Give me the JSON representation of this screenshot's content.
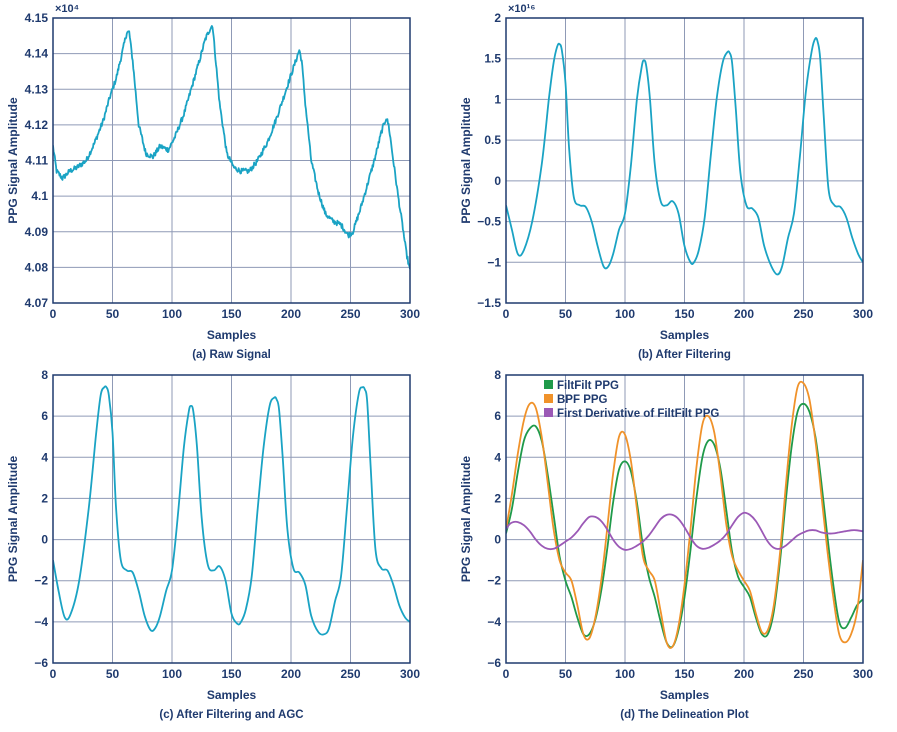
{
  "chart_data": [
    {
      "type": "line",
      "caption": "(a) Raw Signal",
      "xlabel": "Samples",
      "ylabel": "PPG Signal Amplitude",
      "xlim": [
        0,
        300
      ],
      "ylim": [
        4.07,
        4.15
      ],
      "scale_label": "×10⁴",
      "grid": true,
      "xticks": [
        0,
        50,
        100,
        150,
        200,
        250,
        300
      ],
      "yticks": [
        "4.07",
        "4.08",
        "4.09",
        "4.1",
        "4.11",
        "4.12",
        "4.13",
        "4.14",
        "4.15"
      ],
      "series": [
        {
          "color": "#1aa3c4",
          "noise": 0.0015,
          "x": [
            0,
            3,
            8,
            14,
            20,
            28,
            35,
            42,
            48,
            53,
            58,
            62,
            64,
            67,
            72,
            78,
            84,
            90,
            97,
            103,
            110,
            117,
            123,
            128,
            132,
            134,
            136,
            140,
            146,
            152,
            158,
            165,
            172,
            180,
            188,
            195,
            200,
            204,
            207,
            209,
            212,
            217,
            223,
            229,
            235,
            242,
            248,
            252,
            258,
            264,
            270,
            276,
            280,
            282,
            286,
            290,
            294,
            297,
            300
          ],
          "y": [
            4.114,
            4.107,
            4.105,
            4.107,
            4.108,
            4.11,
            4.115,
            4.121,
            4.128,
            4.133,
            4.14,
            4.146,
            4.146,
            4.138,
            4.12,
            4.112,
            4.111,
            4.114,
            4.113,
            4.117,
            4.123,
            4.131,
            4.138,
            4.144,
            4.147,
            4.148,
            4.141,
            4.126,
            4.112,
            4.108,
            4.107,
            4.107,
            4.11,
            4.115,
            4.122,
            4.129,
            4.134,
            4.138,
            4.141,
            4.138,
            4.126,
            4.11,
            4.101,
            4.095,
            4.093,
            4.092,
            4.089,
            4.09,
            4.096,
            4.103,
            4.11,
            4.118,
            4.122,
            4.12,
            4.11,
            4.1,
            4.091,
            4.084,
            4.079
          ]
        }
      ]
    },
    {
      "type": "line",
      "caption": "(b) After Filtering",
      "xlabel": "Samples",
      "ylabel": "PPG Signal Amplitude",
      "xlim": [
        0,
        300
      ],
      "ylim": [
        -1.5,
        2
      ],
      "scale_label": "×10¹⁶",
      "grid": true,
      "xticks": [
        0,
        50,
        100,
        150,
        200,
        250,
        300
      ],
      "yticks": [
        "−1.5",
        "−1",
        "−0.5",
        "0",
        "0.5",
        "1",
        "1.5",
        "2"
      ],
      "series": [
        {
          "color": "#1aa3c4",
          "x": [
            0,
            5,
            10,
            15,
            22,
            30,
            36,
            40,
            43,
            45,
            47,
            50,
            53,
            57,
            62,
            67,
            72,
            77,
            82,
            86,
            90,
            95,
            100,
            105,
            110,
            114,
            116,
            118,
            121,
            125,
            130,
            135,
            140,
            145,
            150,
            155,
            158,
            162,
            167,
            172,
            177,
            182,
            186,
            188,
            190,
            193,
            197,
            202,
            207,
            212,
            217,
            223,
            228,
            232,
            237,
            242,
            247,
            252,
            257,
            260,
            262,
            264,
            267,
            271,
            276,
            281,
            286,
            291,
            296,
            300
          ],
          "y": [
            -0.3,
            -0.6,
            -0.9,
            -0.85,
            -0.5,
            0.2,
            1.0,
            1.45,
            1.65,
            1.68,
            1.6,
            1.2,
            0.4,
            -0.2,
            -0.3,
            -0.32,
            -0.5,
            -0.8,
            -1.05,
            -1.05,
            -0.9,
            -0.6,
            -0.4,
            0.2,
            1.0,
            1.4,
            1.48,
            1.4,
            1.0,
            0.2,
            -0.25,
            -0.3,
            -0.25,
            -0.4,
            -0.8,
            -1.0,
            -1.0,
            -0.85,
            -0.45,
            0.3,
            1.0,
            1.45,
            1.58,
            1.57,
            1.45,
            0.9,
            0.1,
            -0.3,
            -0.34,
            -0.45,
            -0.8,
            -1.05,
            -1.15,
            -1.05,
            -0.7,
            -0.4,
            0.3,
            1.1,
            1.6,
            1.75,
            1.7,
            1.5,
            0.8,
            -0.1,
            -0.3,
            -0.32,
            -0.45,
            -0.7,
            -0.9,
            -1.0
          ]
        }
      ]
    },
    {
      "type": "line",
      "caption": "(c) After Filtering and AGC",
      "xlabel": "Samples",
      "ylabel": "PPG Signal Amplitude",
      "xlim": [
        0,
        300
      ],
      "ylim": [
        -6,
        8
      ],
      "grid": true,
      "xticks": [
        0,
        50,
        100,
        150,
        200,
        250,
        300
      ],
      "yticks": [
        "−6",
        "−4",
        "−2",
        "0",
        "2",
        "4",
        "6",
        "8"
      ],
      "series": [
        {
          "color": "#1aa3c4",
          "x": [
            0,
            5,
            10,
            15,
            22,
            30,
            36,
            40,
            43,
            45,
            47,
            50,
            53,
            57,
            62,
            67,
            72,
            77,
            82,
            86,
            90,
            95,
            100,
            105,
            110,
            114,
            116,
            118,
            121,
            125,
            130,
            135,
            140,
            145,
            150,
            155,
            158,
            162,
            167,
            172,
            177,
            182,
            186,
            188,
            190,
            193,
            197,
            202,
            207,
            212,
            217,
            223,
            228,
            232,
            237,
            242,
            247,
            252,
            257,
            260,
            262,
            264,
            267,
            271,
            276,
            281,
            286,
            291,
            296,
            300
          ],
          "y": [
            -1.0,
            -2.6,
            -3.8,
            -3.6,
            -2.0,
            1.5,
            5.0,
            7.0,
            7.4,
            7.4,
            7.0,
            5.2,
            1.5,
            -1.0,
            -1.5,
            -1.6,
            -2.5,
            -3.7,
            -4.4,
            -4.3,
            -3.7,
            -2.5,
            -1.5,
            1.2,
            4.5,
            6.2,
            6.5,
            6.2,
            4.5,
            1.0,
            -1.2,
            -1.5,
            -1.3,
            -2.0,
            -3.6,
            -4.1,
            -4.0,
            -3.4,
            -1.8,
            1.5,
            4.5,
            6.5,
            6.9,
            6.8,
            6.3,
            4.0,
            0.5,
            -1.4,
            -1.6,
            -2.2,
            -3.7,
            -4.5,
            -4.6,
            -4.3,
            -3.0,
            -1.8,
            1.5,
            5.0,
            7.1,
            7.4,
            7.3,
            6.7,
            3.5,
            -0.5,
            -1.4,
            -1.5,
            -2.2,
            -3.2,
            -3.8,
            -4.0
          ]
        }
      ]
    },
    {
      "type": "line",
      "caption": "(d) The Delineation Plot",
      "xlabel": "Samples",
      "ylabel": "PPG Signal Amplitude",
      "xlim": [
        0,
        300
      ],
      "ylim": [
        -6,
        8
      ],
      "grid": true,
      "legend": "top-left",
      "xticks": [
        0,
        50,
        100,
        150,
        200,
        250,
        300
      ],
      "yticks": [
        "−6",
        "−4",
        "−2",
        "0",
        "2",
        "4",
        "6",
        "8"
      ],
      "series": [
        {
          "name": "FiltFilt PPG",
          "color": "#1f9a4a",
          "x": [
            0,
            5,
            10,
            15,
            20,
            25,
            30,
            35,
            40,
            45,
            50,
            55,
            60,
            65,
            70,
            75,
            80,
            85,
            90,
            95,
            100,
            105,
            110,
            115,
            120,
            125,
            130,
            135,
            140,
            145,
            150,
            155,
            160,
            165,
            170,
            175,
            180,
            185,
            190,
            195,
            200,
            205,
            210,
            215,
            220,
            225,
            230,
            235,
            240,
            245,
            250,
            255,
            260,
            265,
            270,
            275,
            280,
            285,
            290,
            295,
            300
          ],
          "y": [
            0.3,
            1.5,
            3.3,
            4.8,
            5.4,
            5.5,
            4.8,
            3.2,
            1.2,
            -0.8,
            -2.0,
            -2.8,
            -3.8,
            -4.6,
            -4.6,
            -3.9,
            -2.5,
            -0.5,
            1.8,
            3.4,
            3.8,
            3.3,
            1.8,
            -0.3,
            -1.8,
            -2.8,
            -4.0,
            -5.0,
            -5.2,
            -4.4,
            -2.8,
            -0.5,
            2.0,
            4.0,
            4.8,
            4.6,
            3.5,
            1.5,
            -0.6,
            -1.8,
            -2.3,
            -2.8,
            -3.8,
            -4.6,
            -4.6,
            -3.5,
            -1.2,
            1.8,
            4.5,
            6.2,
            6.6,
            6.2,
            5.0,
            2.8,
            0.2,
            -2.2,
            -4.0,
            -4.3,
            -3.8,
            -3.2,
            -2.9
          ]
        },
        {
          "name": "BPF PPG",
          "color": "#f0922a",
          "x": [
            0,
            5,
            10,
            15,
            20,
            25,
            30,
            35,
            40,
            45,
            50,
            55,
            60,
            65,
            70,
            75,
            80,
            85,
            90,
            95,
            100,
            105,
            110,
            115,
            120,
            125,
            130,
            135,
            140,
            145,
            150,
            155,
            160,
            165,
            170,
            175,
            180,
            185,
            190,
            195,
            200,
            205,
            210,
            215,
            220,
            225,
            230,
            235,
            240,
            245,
            250,
            255,
            260,
            265,
            270,
            275,
            280,
            285,
            290,
            295,
            300
          ],
          "y": [
            0.5,
            2.2,
            4.2,
            5.8,
            6.6,
            6.4,
            5.0,
            2.8,
            0.5,
            -1.0,
            -1.6,
            -2.0,
            -3.2,
            -4.6,
            -4.8,
            -3.8,
            -2.0,
            0.5,
            3.2,
            5.0,
            5.1,
            3.8,
            1.5,
            -0.8,
            -1.5,
            -2.0,
            -3.5,
            -5.0,
            -5.2,
            -4.2,
            -2.2,
            0.5,
            3.5,
            5.6,
            6.0,
            5.2,
            3.2,
            0.8,
            -0.8,
            -1.5,
            -2.0,
            -2.5,
            -3.6,
            -4.5,
            -4.4,
            -3.2,
            -0.8,
            2.5,
            5.5,
            7.4,
            7.6,
            6.8,
            4.8,
            2.2,
            -0.5,
            -2.8,
            -4.6,
            -5.0,
            -4.6,
            -3.5,
            -1.0
          ]
        },
        {
          "name": "First Derivative of FiltFilt PPG",
          "color": "#9b59b6",
          "x": [
            0,
            3,
            6,
            10,
            15,
            20,
            25,
            30,
            35,
            40,
            45,
            50,
            55,
            60,
            65,
            70,
            75,
            80,
            85,
            90,
            95,
            100,
            105,
            110,
            115,
            120,
            125,
            130,
            135,
            140,
            145,
            150,
            155,
            160,
            165,
            170,
            175,
            180,
            185,
            190,
            195,
            200,
            205,
            210,
            215,
            220,
            225,
            230,
            235,
            240,
            245,
            250,
            255,
            260,
            265,
            270,
            275,
            280,
            285,
            290,
            295,
            300
          ],
          "y": [
            0.5,
            0.75,
            0.85,
            0.85,
            0.7,
            0.4,
            0.0,
            -0.3,
            -0.45,
            -0.45,
            -0.3,
            -0.1,
            0.1,
            0.4,
            0.8,
            1.1,
            1.1,
            0.9,
            0.5,
            0.0,
            -0.35,
            -0.5,
            -0.45,
            -0.3,
            -0.1,
            0.2,
            0.6,
            1.0,
            1.2,
            1.2,
            1.0,
            0.6,
            0.1,
            -0.3,
            -0.45,
            -0.4,
            -0.25,
            -0.05,
            0.25,
            0.7,
            1.1,
            1.3,
            1.2,
            0.9,
            0.4,
            -0.1,
            -0.4,
            -0.45,
            -0.3,
            -0.05,
            0.2,
            0.35,
            0.45,
            0.45,
            0.35,
            0.3,
            0.3,
            0.35,
            0.4,
            0.45,
            0.45,
            0.4
          ]
        }
      ]
    }
  ]
}
